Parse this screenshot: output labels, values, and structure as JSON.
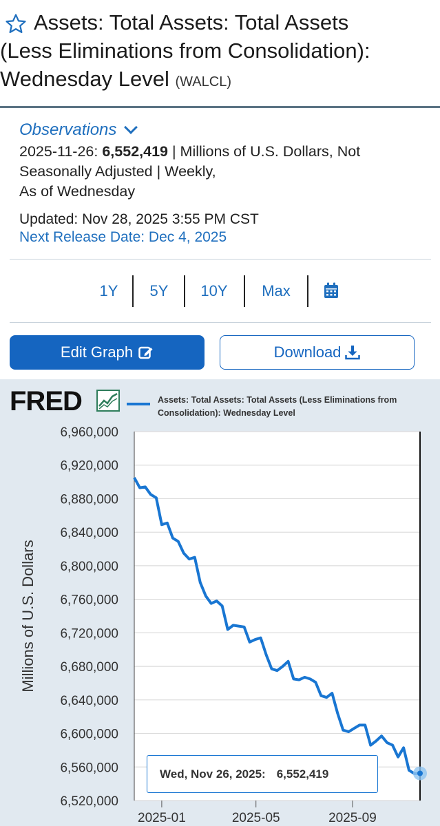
{
  "header": {
    "title_line1": "Assets: Total Assets: Total Assets",
    "title_line2": "(Less Eliminations from Consolidation):",
    "title_line3": "Wednesday Level",
    "series_code": "(WALCL)",
    "icon": "star-outline-icon"
  },
  "observations": {
    "label": "Observations",
    "date": "2025-11-26:",
    "value": "6,552,419",
    "details_1": " | Millions of U.S. Dollars, Not",
    "details_2": "Seasonally Adjusted | Weekly,",
    "details_3": "As of Wednesday",
    "updated": "Updated: Nov 28, 2025 3:55 PM CST",
    "next_release": "Next Release Date: Dec 4, 2025"
  },
  "ranges": [
    "1Y",
    "5Y",
    "10Y",
    "Max"
  ],
  "buttons": {
    "edit_graph": "Edit Graph",
    "download": "Download"
  },
  "brand": "FRED",
  "colors": {
    "accent": "#1565c0",
    "series": "#1976d2",
    "chart_bg": "#e1e9f0"
  },
  "tooltip": {
    "date": "Wed, Nov 26, 2025:",
    "value": "6,552,419"
  },
  "chart_data": {
    "type": "line",
    "title": "",
    "ylabel": "Millions of U.S. Dollars",
    "xlabel": "",
    "legend": "Assets: Total Assets: Total Assets (Less Eliminations from Consolidation): Wednesday Level",
    "legend_placement": "top",
    "grid": true,
    "ylim": [
      6520000,
      6960000
    ],
    "yticks": [
      6520000,
      6560000,
      6600000,
      6640000,
      6680000,
      6720000,
      6760000,
      6800000,
      6840000,
      6880000,
      6920000,
      6960000
    ],
    "ytick_labels": [
      "6,520,000",
      "6,560,000",
      "6,600,000",
      "6,640,000",
      "6,680,000",
      "6,720,000",
      "6,760,000",
      "6,800,000",
      "6,840,000",
      "6,880,000",
      "6,920,000",
      "6,960,000"
    ],
    "xlim": [
      "2024-11-27",
      "2025-11-26"
    ],
    "xticks": [
      "2025-01-01",
      "2025-05-01",
      "2025-09-01"
    ],
    "xtick_labels": [
      "2025-01",
      "2025-05",
      "2025-09"
    ],
    "series": [
      {
        "name": "Assets: Total Assets: Total Assets (Less Eliminations from Consolidation): Wednesday Level",
        "x": [
          "2024-11-27",
          "2024-12-04",
          "2024-12-11",
          "2024-12-18",
          "2024-12-25",
          "2025-01-01",
          "2025-01-08",
          "2025-01-15",
          "2025-01-22",
          "2025-01-29",
          "2025-02-05",
          "2025-02-12",
          "2025-02-19",
          "2025-02-26",
          "2025-03-05",
          "2025-03-12",
          "2025-03-19",
          "2025-03-26",
          "2025-04-02",
          "2025-04-09",
          "2025-04-16",
          "2025-04-23",
          "2025-04-30",
          "2025-05-07",
          "2025-05-14",
          "2025-05-21",
          "2025-05-28",
          "2025-06-04",
          "2025-06-11",
          "2025-06-18",
          "2025-06-25",
          "2025-07-02",
          "2025-07-09",
          "2025-07-16",
          "2025-07-23",
          "2025-07-30",
          "2025-08-06",
          "2025-08-13",
          "2025-08-20",
          "2025-08-27",
          "2025-09-03",
          "2025-09-10",
          "2025-09-17",
          "2025-09-24",
          "2025-10-01",
          "2025-10-08",
          "2025-10-15",
          "2025-10-22",
          "2025-10-29",
          "2025-11-05",
          "2025-11-12",
          "2025-11-19",
          "2025-11-26"
        ],
        "values": [
          6905000,
          6893000,
          6894000,
          6885000,
          6881000,
          6849000,
          6851000,
          6833000,
          6829000,
          6815000,
          6808000,
          6810000,
          6780000,
          6764000,
          6755000,
          6758000,
          6752000,
          6724000,
          6729000,
          6728000,
          6727000,
          6709000,
          6712000,
          6714000,
          6694000,
          6677000,
          6675000,
          6680000,
          6686000,
          6665000,
          6664000,
          6667000,
          6665000,
          6661000,
          6645000,
          6643000,
          6648000,
          6624000,
          6604000,
          6602000,
          6606000,
          6610000,
          6610000,
          6586000,
          6591000,
          6597000,
          6589000,
          6586000,
          6572000,
          6583000,
          6556000,
          6552000,
          6552419
        ]
      }
    ]
  }
}
